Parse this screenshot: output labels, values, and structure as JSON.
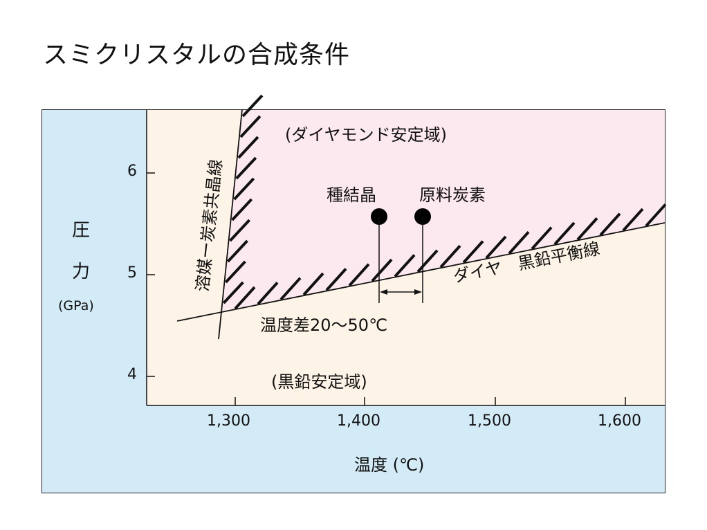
{
  "title": "スミクリスタルの合成条件",
  "colors": {
    "outer_background": "#d3ebf7",
    "graphite_region": "#fdf3e7",
    "diamond_region": "#fce9ef",
    "line": "#111111"
  },
  "axes": {
    "y_label_1": "圧",
    "y_label_2": "力",
    "y_unit": "(GPa)",
    "y_ticks": [
      "6",
      "5",
      "4"
    ],
    "x_label": "温度 (℃)",
    "x_ticks": [
      "1,300",
      "1,400",
      "1,500",
      "1,600"
    ]
  },
  "regions": {
    "diamond": "(ダイヤモンド安定域)",
    "graphite": "(黒鉛安定域)"
  },
  "lines": {
    "eutectic": "溶媒ー炭素共晶線",
    "equilibrium": "ダイヤ　黒鉛平衡線"
  },
  "points": {
    "seed": "種結晶",
    "source": "原料炭素"
  },
  "temperature_difference": "温度差20～50℃"
}
